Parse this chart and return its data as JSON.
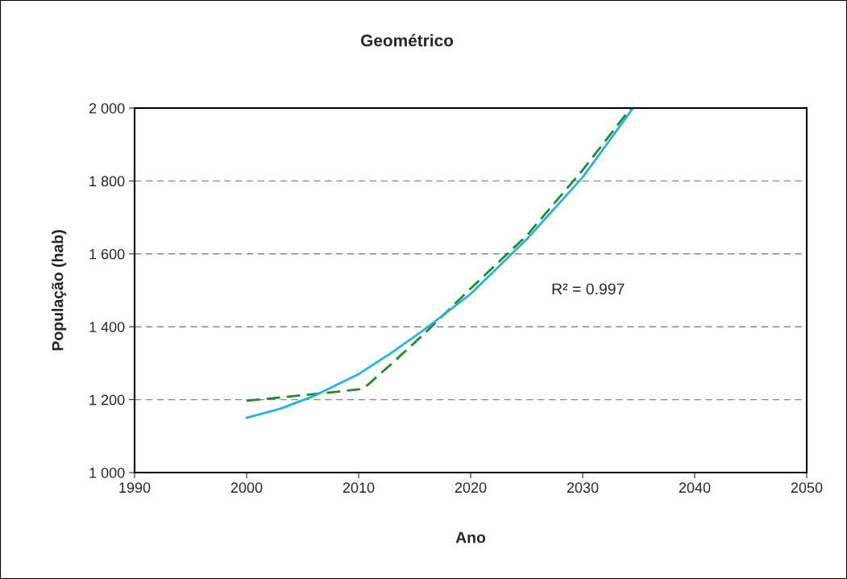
{
  "chart_data": {
    "type": "line",
    "title": "Geométrico",
    "xlabel": "Ano",
    "ylabel": "População (hab)",
    "series": [
      {
        "color": "#228b22",
        "line_style": "dashed",
        "x": [
          2000,
          2005,
          2010,
          2010.8,
          2013,
          2016,
          2020,
          2025,
          2030,
          2034.3
        ],
        "values": [
          1197,
          1212,
          1228,
          1240,
          1300,
          1385,
          1505,
          1650,
          1830,
          2000
        ]
      },
      {
        "color": "#1eb4ea",
        "line_style": "solid",
        "x": [
          2000,
          2003,
          2006,
          2010,
          2013,
          2016,
          2020,
          2025,
          2030,
          2034.5
        ],
        "values": [
          1150,
          1175,
          1210,
          1270,
          1330,
          1395,
          1490,
          1640,
          1810,
          2000
        ]
      }
    ],
    "xlim": [
      1990,
      2050
    ],
    "xticks": [
      1990,
      2000,
      2010,
      2020,
      2030,
      2040,
      2050
    ],
    "ylim": [
      1000,
      2000
    ],
    "yticks": [
      {
        "value": 1000,
        "label": "1 000"
      },
      {
        "value": 1200,
        "label": "1 200"
      },
      {
        "value": 1400,
        "label": "1 400"
      },
      {
        "value": 1600,
        "label": "1 600"
      },
      {
        "value": 1800,
        "label": "1 800"
      },
      {
        "value": 2000,
        "label": "2 000"
      }
    ],
    "grid": "y",
    "legend": false,
    "marker": "none",
    "annotations": [
      "R² = 0.997"
    ]
  }
}
